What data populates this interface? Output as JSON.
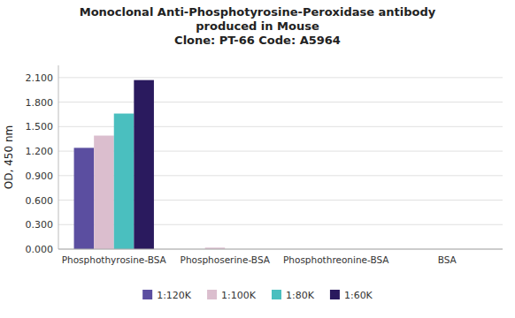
{
  "chart_data": {
    "type": "bar",
    "title": [
      "Monoclonal Anti-Phosphotyrosine-Peroxidase antibody",
      "produced in Mouse",
      "Clone: PT-66  Code: A5964"
    ],
    "categories": [
      "Phosphothyrosine-BSA",
      "Phosphoserine-BSA",
      "Phosphothreonine-BSA",
      "BSA"
    ],
    "series": [
      {
        "name": "1:120K",
        "color": "#5b4ea0",
        "values": [
          1.24,
          0.0,
          0.0,
          0.0
        ]
      },
      {
        "name": "1:100K",
        "color": "#dbbece",
        "values": [
          1.39,
          0.018,
          0.0,
          0.0
        ]
      },
      {
        "name": "1:80K",
        "color": "#4abfbf",
        "values": [
          1.66,
          0.0,
          0.0,
          0.0
        ]
      },
      {
        "name": "1:60K",
        "color": "#2a1a5e",
        "values": [
          2.07,
          0.0,
          0.0,
          0.0
        ]
      }
    ],
    "y_label": "OD, 450 nm",
    "ylim": [
      0.0,
      2.25
    ],
    "yticks": [
      {
        "value": 0.0,
        "label": "0.000"
      },
      {
        "value": 0.3,
        "label": "0.300"
      },
      {
        "value": 0.6,
        "label": "0.600"
      },
      {
        "value": 0.9,
        "label": "0.900"
      },
      {
        "value": 1.2,
        "label": "1.200"
      },
      {
        "value": 1.5,
        "label": "1.500"
      },
      {
        "value": 1.8,
        "label": "1.800"
      },
      {
        "value": 2.1,
        "label": "2.100"
      }
    ],
    "grid": true,
    "legend": "bottom"
  }
}
